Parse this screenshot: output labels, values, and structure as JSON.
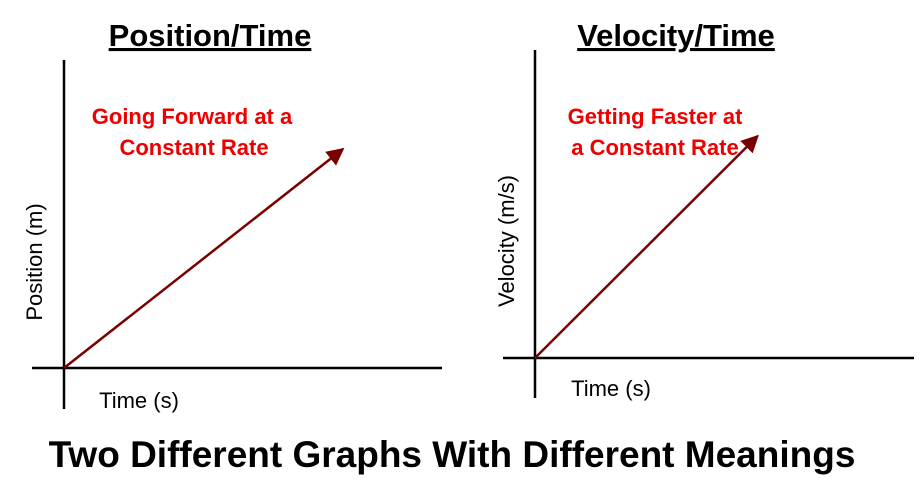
{
  "page_title": "Two Different Graphs With Different Meanings",
  "colors": {
    "annotation": "#ee0000",
    "line": "#7a0000",
    "axis": "#000000"
  },
  "chart_data": [
    {
      "type": "line",
      "title": "Position/Time",
      "xlabel": "Time (s)",
      "ylabel": "Position (m)",
      "annotation": [
        "Going Forward at a",
        "Constant Rate"
      ],
      "grid": false,
      "xlim": [
        0,
        10
      ],
      "ylim": [
        0,
        10
      ],
      "series": [
        {
          "name": "position",
          "x": [
            0,
            9.3
          ],
          "y": [
            0,
            7.3
          ]
        }
      ]
    },
    {
      "type": "line",
      "title": "Velocity/Time",
      "xlabel": "Time (s)",
      "ylabel": "Velocity (m/s)",
      "annotation": [
        "Getting Faster at",
        "a Constant Rate"
      ],
      "grid": false,
      "xlim": [
        0,
        10
      ],
      "ylim": [
        0,
        10
      ],
      "series": [
        {
          "name": "velocity",
          "x": [
            0,
            7.3
          ],
          "y": [
            0,
            7.4
          ]
        }
      ]
    }
  ]
}
